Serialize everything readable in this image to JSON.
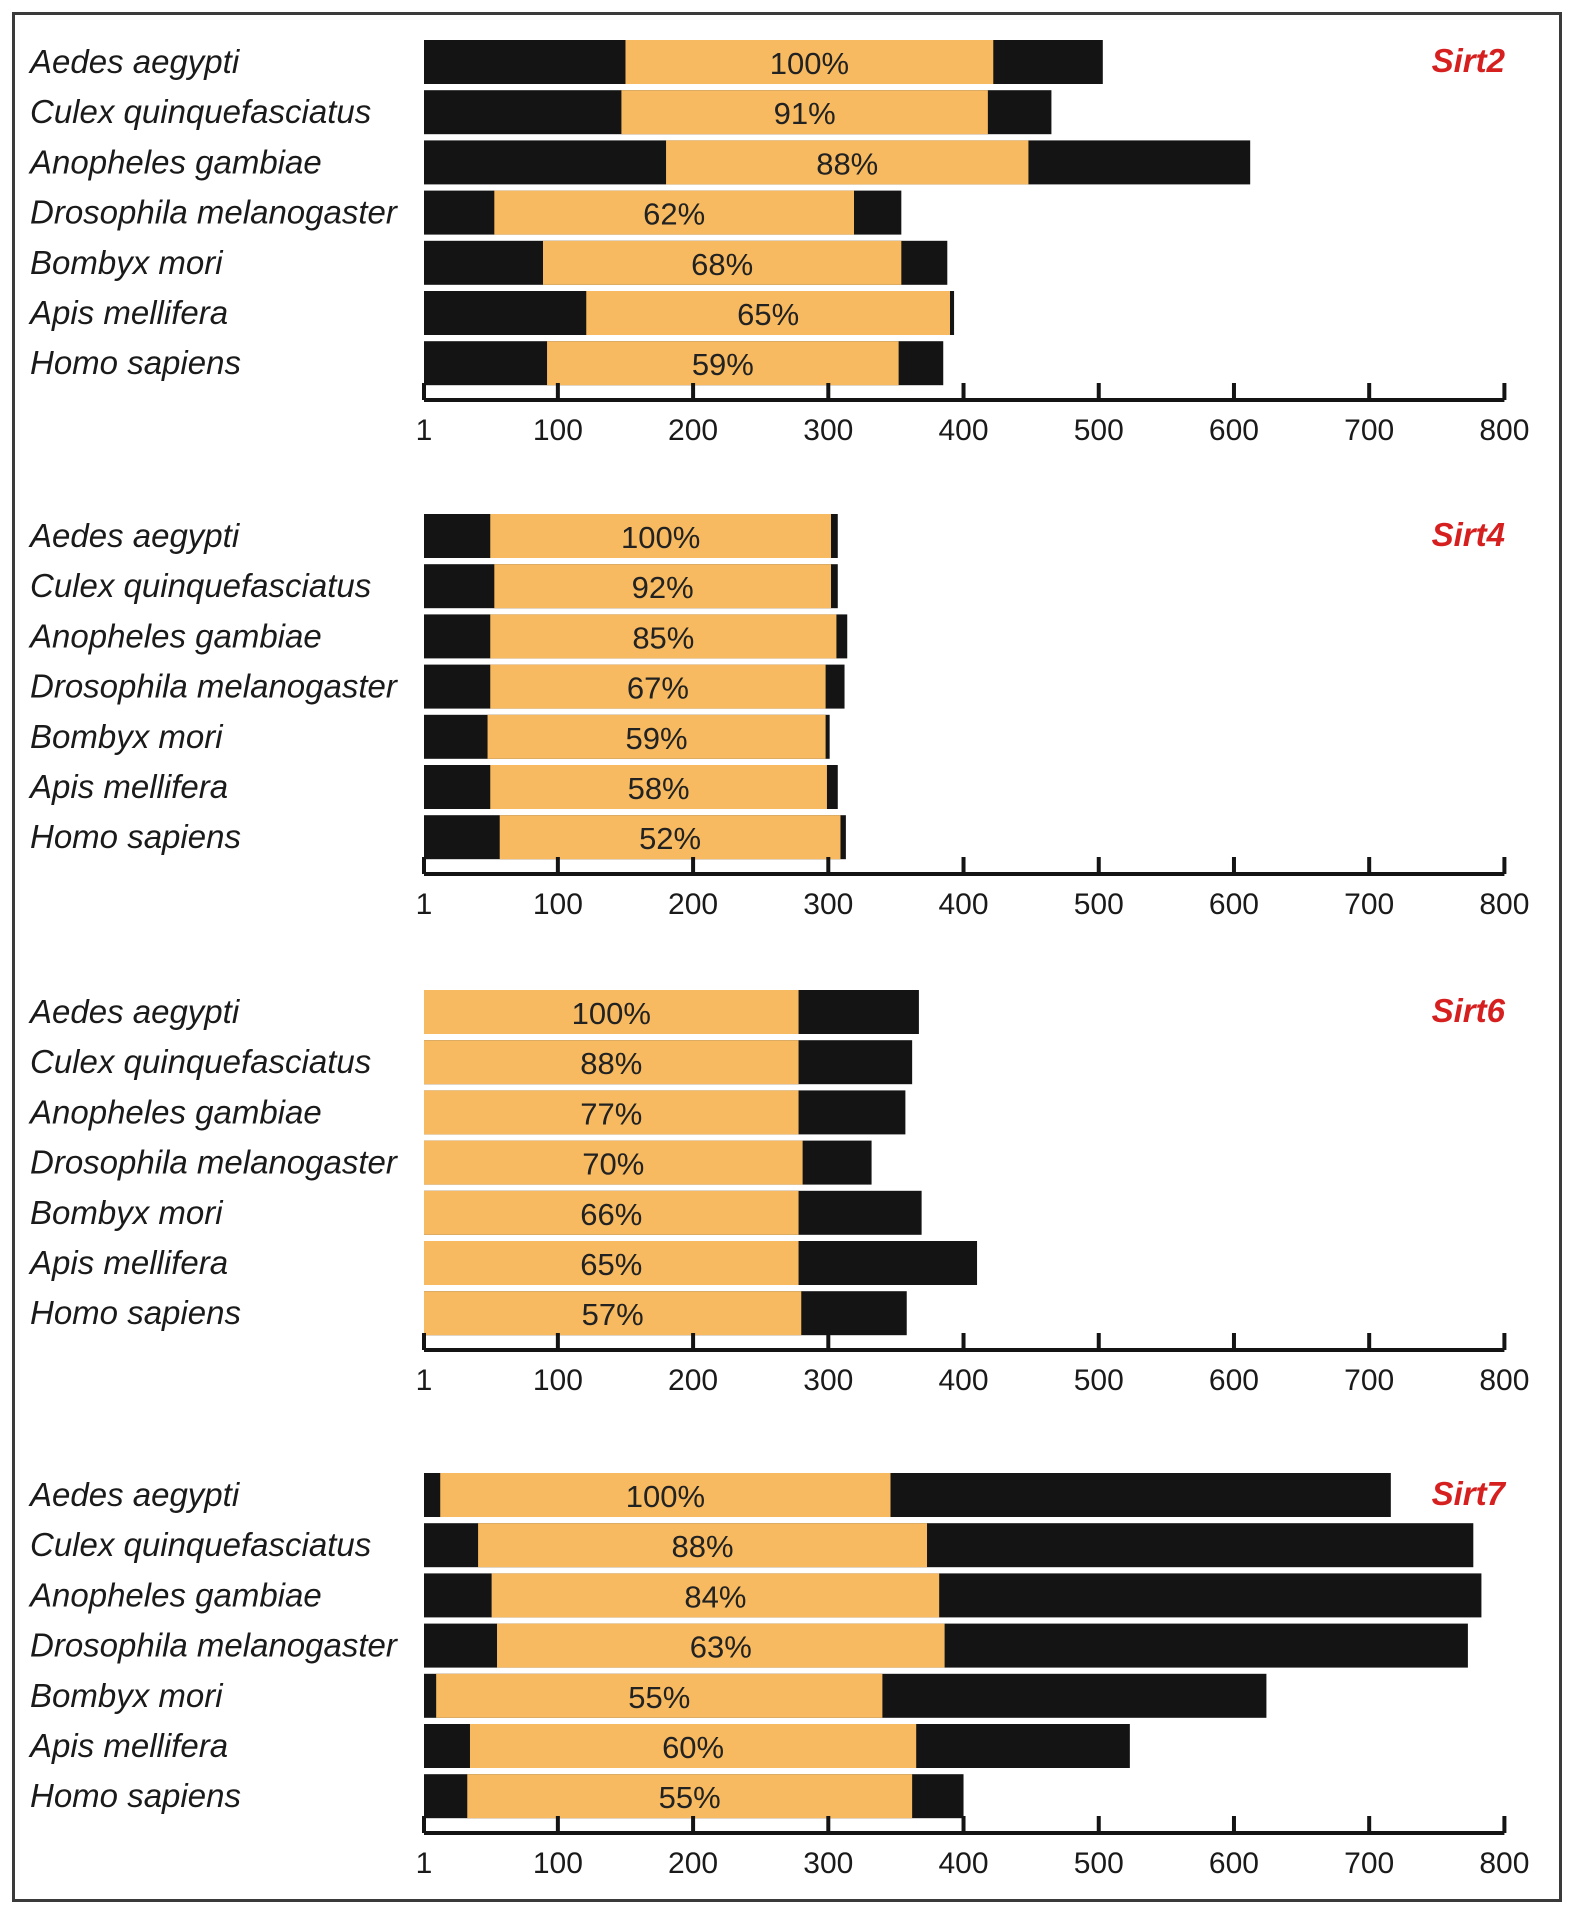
{
  "colors": {
    "conserved": "#F7BA60",
    "flank": "#141414",
    "axis": "#141414",
    "gene_label": "#D6201F"
  },
  "chart_data": [
    {
      "type": "bar",
      "title": "Sirt2",
      "categories": [
        "Aedes aegypti",
        "Culex quinquefasciatus",
        "Anopheles gambiae",
        "Drosophila melanogaster",
        "Bombyx mori",
        "Apis mellifera",
        "Homo sapiens"
      ],
      "series": [
        {
          "name": "protein length",
          "values": [
            503,
            465,
            612,
            354,
            388,
            393,
            385
          ]
        },
        {
          "name": "conserved domain start",
          "values": [
            150,
            147,
            180,
            53,
            89,
            121,
            92
          ]
        },
        {
          "name": "conserved domain end",
          "values": [
            422,
            418,
            448,
            319,
            354,
            390,
            352
          ]
        },
        {
          "name": "identity",
          "values": [
            "100%",
            "91%",
            "88%",
            "62%",
            "68%",
            "65%",
            "59%"
          ]
        }
      ],
      "xticks": [
        "1",
        "100",
        "200",
        "300",
        "400",
        "500",
        "600",
        "700",
        "800"
      ],
      "xlim": [
        1,
        800
      ]
    },
    {
      "type": "bar",
      "title": "Sirt4",
      "categories": [
        "Aedes aegypti",
        "Culex quinquefasciatus",
        "Anopheles gambiae",
        "Drosophila melanogaster",
        "Bombyx mori",
        "Apis mellifera",
        "Homo sapiens"
      ],
      "series": [
        {
          "name": "protein length",
          "values": [
            307,
            307,
            314,
            312,
            301,
            307,
            313
          ]
        },
        {
          "name": "conserved domain start",
          "values": [
            50,
            53,
            50,
            50,
            48,
            50,
            57
          ]
        },
        {
          "name": "conserved domain end",
          "values": [
            302,
            302,
            306,
            298,
            298,
            299,
            309
          ]
        },
        {
          "name": "identity",
          "values": [
            "100%",
            "92%",
            "85%",
            "67%",
            "59%",
            "58%",
            "52%"
          ]
        }
      ],
      "xticks": [
        "1",
        "100",
        "200",
        "300",
        "400",
        "500",
        "600",
        "700",
        "800"
      ],
      "xlim": [
        1,
        800
      ]
    },
    {
      "type": "bar",
      "title": "Sirt6",
      "categories": [
        "Aedes aegypti",
        "Culex quinquefasciatus",
        "Anopheles gambiae",
        "Drosophila melanogaster",
        "Bombyx mori",
        "Apis mellifera",
        "Homo sapiens"
      ],
      "series": [
        {
          "name": "protein length",
          "values": [
            367,
            362,
            357,
            332,
            369,
            410,
            358
          ]
        },
        {
          "name": "conserved domain start",
          "values": [
            1,
            1,
            1,
            1,
            1,
            1,
            1
          ]
        },
        {
          "name": "conserved domain end",
          "values": [
            278,
            278,
            278,
            281,
            278,
            278,
            280
          ]
        },
        {
          "name": "identity",
          "values": [
            "100%",
            "88%",
            "77%",
            "70%",
            "66%",
            "65%",
            "57%"
          ]
        }
      ],
      "xticks": [
        "1",
        "100",
        "200",
        "300",
        "400",
        "500",
        "600",
        "700",
        "800"
      ],
      "xlim": [
        1,
        800
      ]
    },
    {
      "type": "bar",
      "title": "Sirt7",
      "categories": [
        "Aedes aegypti",
        "Culex quinquefasciatus",
        "Anopheles gambiae",
        "Drosophila melanogaster",
        "Bombyx mori",
        "Apis mellifera",
        "Homo sapiens"
      ],
      "series": [
        {
          "name": "protein length",
          "values": [
            716,
            777,
            783,
            773,
            624,
            523,
            400
          ]
        },
        {
          "name": "conserved domain start",
          "values": [
            13,
            41,
            51,
            55,
            10,
            35,
            33
          ]
        },
        {
          "name": "conserved domain end",
          "values": [
            346,
            373,
            382,
            386,
            340,
            365,
            362
          ]
        },
        {
          "name": "identity",
          "values": [
            "100%",
            "88%",
            "84%",
            "63%",
            "55%",
            "60%",
            "55%"
          ]
        }
      ],
      "xticks": [
        "1",
        "100",
        "200",
        "300",
        "400",
        "500",
        "600",
        "700",
        "800"
      ],
      "xlim": [
        1,
        800
      ]
    }
  ]
}
